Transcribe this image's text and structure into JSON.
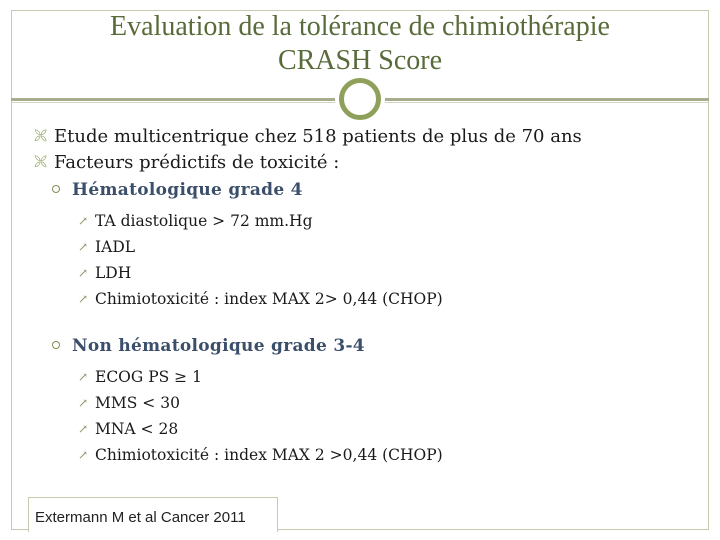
{
  "slide": {
    "title_line1": "Evaluation de la tolérance de chimiothérapie",
    "title_line2": "CRASH Score",
    "bullets": [
      "Etude multicentrique chez 518 patients de plus de 70 ans",
      "Facteurs prédictifs de toxicité :"
    ],
    "groups": [
      {
        "heading": "Hématologique grade 4",
        "items": [
          "TA diastolique > 72 mm.Hg",
          "IADL",
          "LDH",
          "Chimiotoxicité : index MAX 2> 0,44 (CHOP)"
        ]
      },
      {
        "heading": "Non hématologique grade 3-4",
        "items": [
          "ECOG PS ≥ 1",
          "MMS < 30",
          "MNA < 28",
          "Chimiotoxicité : index MAX 2 >0,44 (CHOP)"
        ]
      }
    ],
    "footer": "Extermann M et al Cancer 2011",
    "colors": {
      "title": "#596b3a",
      "accent": "#8fa05a",
      "heading": "#3b4f6b"
    },
    "icons": {
      "level1_bullet": "bullet-icon",
      "level2_bullet": "ring-bullet-icon",
      "level3_bullet": "arrow-bullet-icon"
    }
  }
}
